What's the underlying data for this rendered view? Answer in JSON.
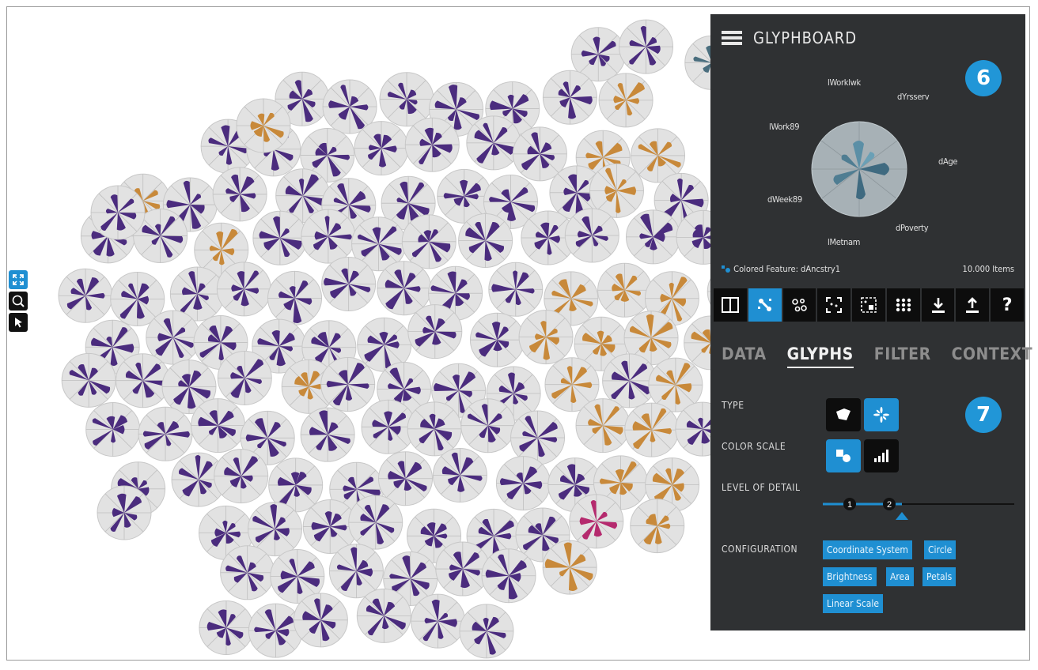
{
  "panel": {
    "title": "GLYPHBOARD",
    "menu_icon": "hamburger-icon",
    "step_badges": [
      "6",
      "7"
    ],
    "preview_feature_labels": [
      "lWorklwk",
      "dYrsserv",
      "lWork89",
      "dAge",
      "dWeek89",
      "dPoverty",
      "lMetnam"
    ],
    "legend": {
      "colored_feature": "Colored Feature: dAncstry1",
      "item_count": "10.000 Items"
    },
    "toolbar": [
      {
        "icon": "split-view-icon",
        "active": false
      },
      {
        "icon": "glyph-link-icon",
        "active": true
      },
      {
        "icon": "cluster-icon",
        "active": false
      },
      {
        "icon": "fit-screen-icon",
        "active": false
      },
      {
        "icon": "selection-box-icon",
        "active": false
      },
      {
        "icon": "grid-layout-icon",
        "active": false
      },
      {
        "icon": "download-icon",
        "active": false
      },
      {
        "icon": "upload-icon",
        "active": false
      },
      {
        "icon": "help-icon",
        "active": false,
        "label": "?"
      }
    ],
    "tabs": [
      {
        "label": "DATA",
        "active": false
      },
      {
        "label": "GLYPHS",
        "active": true
      },
      {
        "label": "FILTER",
        "active": false
      },
      {
        "label": "CONTEXT",
        "active": false
      }
    ],
    "type_label": "TYPE",
    "color_scale_label": "COLOR SCALE",
    "level_of_detail_label": "LEVEL OF DETAIL",
    "level_of_detail": {
      "markers": [
        "1",
        "2"
      ],
      "value": 2
    },
    "configuration_label": "CONFIGURATION",
    "configuration_options": [
      "Coordinate System",
      "Circle",
      "Brightness",
      "Area",
      "Petals",
      "Linear Scale"
    ]
  },
  "left_tools": [
    {
      "icon": "expand-icon",
      "active": true
    },
    {
      "icon": "zoom-icon",
      "active": false
    },
    {
      "icon": "cursor-icon",
      "active": false
    }
  ],
  "colors": {
    "panel_bg": "#2f3133",
    "accent": "#1f8fd2",
    "glyph_purple": "#4b2c7e",
    "glyph_orange": "#c8893a",
    "glyph_magenta": "#b52a6e",
    "glyph_teal": "#4a6e7e"
  }
}
